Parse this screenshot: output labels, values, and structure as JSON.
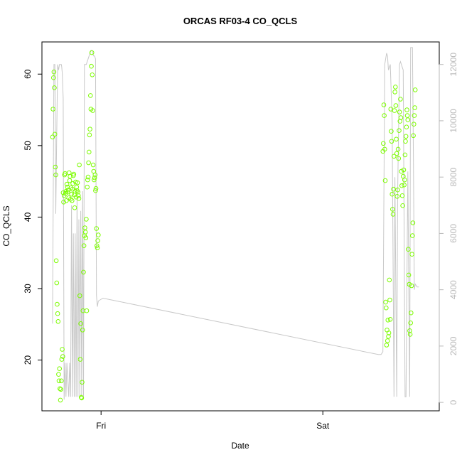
{
  "chart_data": {
    "type": "scatter",
    "title": "ORCAS RF03-4 CO_QCLS",
    "xlabel": "Date",
    "ylabel": "CO_QCLS",
    "x_axis": {
      "units": "hours since Thu 00:00",
      "range": [
        17.6,
        60.6
      ],
      "ticks": [
        {
          "value": 24,
          "label": "Fri"
        },
        {
          "value": 48,
          "label": "Sat"
        }
      ]
    },
    "y_left": {
      "range": [
        12.9,
        64.5
      ],
      "ticks": [
        20,
        30,
        40,
        50,
        60
      ],
      "tick_labels": [
        "20",
        "30",
        "40",
        "50",
        "60"
      ]
    },
    "y_right": {
      "range": [
        -300,
        12800
      ],
      "ticks": [
        0,
        2000,
        4000,
        6000,
        8000,
        10000,
        12000
      ],
      "tick_labels": [
        "0",
        "2000",
        "4000",
        "6000",
        "8000",
        "10000",
        "12000"
      ],
      "color": "#b8b8b8"
    },
    "points_color": "#7cfc00",
    "line_color": "#c8c8c8",
    "grid": false,
    "series": [
      {
        "kind": "points",
        "x": [
          18.75,
          18.8,
          18.85,
          18.9,
          18.95,
          19.0,
          19.05,
          19.1,
          19.15,
          19.2,
          19.25,
          19.3,
          19.35,
          19.4,
          19.45,
          19.5,
          19.55,
          19.6,
          19.65,
          19.7,
          19.75,
          19.8,
          19.85,
          19.9,
          19.95,
          20.0,
          20.05,
          20.1,
          20.15,
          20.2,
          20.25,
          20.3,
          20.35,
          20.4,
          20.45,
          20.5,
          20.55,
          20.6,
          20.65,
          20.7,
          20.75,
          20.8,
          20.85,
          20.9,
          20.95,
          21.0,
          21.05,
          21.1,
          21.15,
          21.2,
          21.25,
          21.3,
          21.35,
          21.4,
          21.45,
          21.5,
          21.55,
          21.6,
          21.65,
          21.7,
          21.75,
          21.8,
          21.85,
          21.9,
          21.95,
          22.0,
          22.05,
          22.1,
          22.15,
          22.2,
          22.25,
          22.3,
          22.35,
          22.4,
          22.45,
          22.5,
          22.55,
          22.6,
          22.65,
          22.7,
          22.75,
          22.8,
          22.85,
          22.9,
          22.95,
          23.0,
          23.05,
          23.1,
          23.15,
          23.2,
          23.25,
          23.3,
          23.35,
          23.4,
          23.45,
          23.5,
          23.55,
          23.6,
          23.65,
          23.7,
          54.5,
          54.55,
          54.6,
          54.65,
          54.7,
          54.75,
          54.8,
          54.85,
          54.9,
          54.95,
          55.0,
          55.05,
          55.1,
          55.15,
          55.2,
          55.25,
          55.3,
          55.35,
          55.4,
          55.45,
          55.5,
          55.55,
          55.6,
          55.65,
          55.7,
          55.75,
          55.8,
          55.85,
          55.9,
          55.95,
          56.0,
          56.05,
          56.1,
          56.15,
          56.2,
          56.25,
          56.3,
          56.35,
          56.4,
          56.45,
          56.5,
          56.55,
          56.6,
          56.65,
          56.7,
          56.75,
          56.8,
          56.85,
          56.9,
          56.95,
          57.0,
          57.05,
          57.1,
          57.15,
          57.2,
          57.25,
          57.3,
          57.35,
          57.4,
          57.45,
          57.5,
          57.55,
          57.6,
          57.65,
          57.7,
          57.75,
          57.8,
          57.85,
          57.9,
          57.95,
          58.0
        ],
        "y": [
          51.2,
          55.1,
          59.5,
          60.3,
          58.1,
          51.6,
          47.0,
          45.9,
          33.9,
          30.8,
          27.8,
          26.5,
          25.4,
          18.0,
          17.1,
          18.8,
          16.0,
          14.4,
          15.9,
          17.1,
          20.1,
          21.5,
          20.5,
          43.4,
          42.1,
          43.0,
          45.9,
          46.1,
          43.3,
          43.6,
          42.3,
          44.6,
          44.2,
          43.5,
          43.8,
          42.7,
          46.2,
          45.1,
          45.7,
          42.5,
          44.1,
          43.2,
          42.3,
          43.9,
          44.7,
          45.8,
          46.0,
          43.1,
          41.3,
          43.6,
          44.9,
          42.8,
          44.2,
          43.7,
          44.8,
          43.5,
          43.0,
          42.6,
          47.3,
          29.0,
          20.1,
          25.1,
          14.8,
          14.7,
          16.9,
          24.2,
          26.9,
          32.3,
          36.0,
          37.4,
          38.5,
          37.9,
          37.1,
          39.7,
          26.9,
          44.2,
          45.2,
          45.6,
          47.6,
          49.1,
          51.5,
          52.3,
          57.0,
          55.1,
          61.1,
          63.0,
          59.9,
          54.9,
          47.3,
          46.4,
          45.2,
          45.5,
          45.9,
          43.7,
          44.0,
          38.4,
          36.0,
          35.7,
          36.7,
          37.5,
          49.2,
          50.3,
          55.7,
          54.2,
          49.5,
          45.1,
          28.1,
          27.3,
          22.1,
          24.2,
          22.7,
          25.6,
          23.3,
          23.8,
          31.2,
          28.4,
          25.7,
          55.1,
          52.0,
          50.6,
          43.2,
          41.1,
          40.4,
          43.9,
          48.5,
          54.9,
          57.5,
          58.2,
          55.6,
          50.9,
          48.9,
          42.9,
          43.8,
          49.5,
          48.2,
          52.1,
          54.7,
          53.4,
          56.5,
          53.9,
          46.4,
          44.4,
          43.0,
          41.6,
          45.7,
          46.6,
          44.5,
          45.2,
          48.7,
          50.6,
          51.3,
          52.6,
          55.0,
          54.2,
          53.6,
          35.5,
          31.9,
          30.6,
          24.1,
          23.6,
          25.2,
          26.6,
          30.4,
          34.8,
          37.4,
          39.2,
          51.4,
          53.0,
          54.2,
          55.3,
          57.8
        ]
      },
      {
        "kind": "line",
        "axis": "right",
        "x": [
          18.75,
          18.9,
          19.0,
          19.1,
          19.2,
          19.3,
          19.4,
          19.5,
          19.7,
          19.75,
          19.8,
          19.9,
          20.0,
          20.1,
          20.2,
          20.3,
          20.5,
          20.6,
          20.7,
          20.8,
          20.9,
          21.0,
          21.1,
          21.2,
          21.3,
          21.4,
          21.5,
          21.6,
          21.7,
          21.8,
          21.9,
          22.0,
          22.1,
          22.2,
          22.3,
          22.4,
          22.5,
          22.6,
          22.7,
          22.8,
          22.9,
          23.0,
          23.1,
          23.2,
          23.3,
          23.4,
          23.5,
          23.6,
          23.7,
          24.2,
          54.0,
          54.3,
          54.5,
          54.7,
          54.9,
          55.0,
          55.1,
          55.3,
          55.5,
          55.7,
          55.8,
          56.0,
          56.1,
          56.3,
          56.4,
          56.6,
          56.7,
          56.9,
          57.0,
          57.2,
          57.4,
          57.5,
          57.6,
          57.7,
          57.8,
          57.9,
          58.0,
          58.2,
          58.4
        ],
        "y": [
          2800,
          12000,
          12000,
          6700,
          9500,
          12000,
          11800,
          12000,
          12000,
          11900,
          11700,
          10800,
          100,
          1400,
          200,
          1400,
          200,
          1400,
          200,
          7000,
          200,
          6000,
          200,
          6000,
          200,
          7200,
          200,
          6500,
          200,
          6800,
          200,
          7500,
          200,
          12000,
          12000,
          12000,
          12100,
          12200,
          12300,
          12400,
          12500,
          12500,
          12400,
          12300,
          12300,
          12200,
          3800,
          3400,
          3600,
          3700,
          1700,
          1700,
          1800,
          12000,
          12400,
          12300,
          11800,
          12000,
          10000,
          200,
          8000,
          200,
          7500,
          12000,
          12100,
          11900,
          11800,
          200,
          200,
          8200,
          200,
          12600,
          12600,
          12600,
          8800,
          4000,
          4200,
          4100,
          4100
        ]
      }
    ]
  }
}
